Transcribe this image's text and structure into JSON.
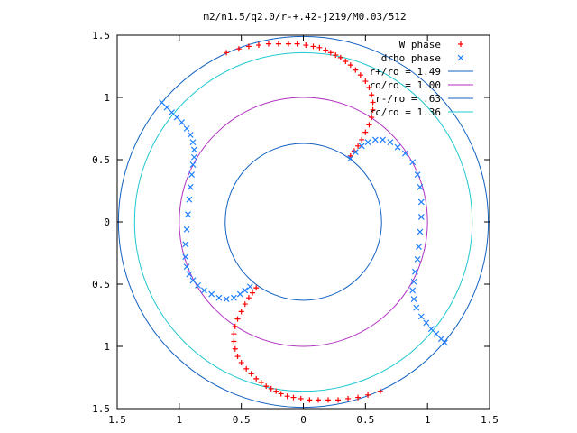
{
  "chart_data": {
    "type": "scatter",
    "title": "m2/n1.5/q2.0/r-+.42-j219/M0.03/512",
    "xlabel": "",
    "ylabel": "",
    "xlim": [
      -1.5,
      1.5
    ],
    "ylim": [
      -1.5,
      1.5
    ],
    "x_ticks": [
      -1.5,
      -1,
      -0.5,
      0,
      0.5,
      1,
      1.5
    ],
    "y_ticks": [
      -1.5,
      -1,
      -0.5,
      0,
      0.5,
      1,
      1.5
    ],
    "x_tick_labels": [
      "1.5",
      "1",
      "0.5",
      "0",
      "0.5",
      "1",
      "1.5"
    ],
    "y_tick_labels": [
      "1.5",
      "1",
      "0.5",
      "0",
      "0.5",
      "1",
      "1.5"
    ],
    "grid": false,
    "legend_position": "top-right",
    "legend": [
      {
        "label": "W phase",
        "marker": "plus",
        "color": "#ff0000"
      },
      {
        "label": "drho phase",
        "marker": "cross",
        "color": "#2080ff"
      },
      {
        "label": "r+/ro = 1.49",
        "marker": "line",
        "color": "#1060c0"
      },
      {
        "label": "ro/ro = 1.00",
        "marker": "line",
        "color": "#b030c0"
      },
      {
        "label": "r-/ro = .63",
        "marker": "line",
        "color": "#1060c0"
      },
      {
        "label": "rc/ro = 1.36",
        "marker": "line",
        "color": "#20c8d0"
      }
    ],
    "circles": [
      {
        "radius": 1.49,
        "color": "#1060c0"
      },
      {
        "radius": 1.0,
        "color": "#b030c0"
      },
      {
        "radius": 0.63,
        "color": "#1060c0"
      },
      {
        "radius": 1.36,
        "color": "#20c8d0"
      }
    ],
    "series": [
      {
        "name": "W phase",
        "color": "#ff0000",
        "marker": "plus",
        "points": [
          [
            -0.62,
            1.36
          ],
          [
            -0.52,
            1.39
          ],
          [
            -0.44,
            1.41
          ],
          [
            -0.36,
            1.42
          ],
          [
            -0.28,
            1.43
          ],
          [
            -0.2,
            1.43
          ],
          [
            -0.12,
            1.43
          ],
          [
            -0.05,
            1.43
          ],
          [
            0.02,
            1.42
          ],
          [
            0.08,
            1.41
          ],
          [
            0.13,
            1.4
          ],
          [
            0.18,
            1.38
          ],
          [
            0.22,
            1.36
          ],
          [
            0.26,
            1.34
          ],
          [
            0.3,
            1.32
          ],
          [
            0.34,
            1.29
          ],
          [
            0.38,
            1.26
          ],
          [
            0.42,
            1.22
          ],
          [
            0.46,
            1.18
          ],
          [
            0.5,
            1.13
          ],
          [
            0.53,
            1.08
          ],
          [
            0.55,
            1.02
          ],
          [
            0.56,
            0.96
          ],
          [
            0.56,
            0.9
          ],
          [
            0.55,
            0.84
          ],
          [
            0.53,
            0.78
          ],
          [
            0.5,
            0.72
          ],
          [
            0.47,
            0.66
          ],
          [
            0.44,
            0.61
          ],
          [
            0.41,
            0.57
          ],
          [
            0.38,
            0.53
          ],
          [
            0.62,
            -1.36
          ],
          [
            0.52,
            -1.39
          ],
          [
            0.44,
            -1.41
          ],
          [
            0.36,
            -1.42
          ],
          [
            0.28,
            -1.43
          ],
          [
            0.2,
            -1.43
          ],
          [
            0.12,
            -1.43
          ],
          [
            0.05,
            -1.43
          ],
          [
            -0.02,
            -1.42
          ],
          [
            -0.08,
            -1.41
          ],
          [
            -0.13,
            -1.4
          ],
          [
            -0.18,
            -1.38
          ],
          [
            -0.22,
            -1.36
          ],
          [
            -0.26,
            -1.34
          ],
          [
            -0.3,
            -1.32
          ],
          [
            -0.34,
            -1.29
          ],
          [
            -0.38,
            -1.26
          ],
          [
            -0.42,
            -1.22
          ],
          [
            -0.46,
            -1.18
          ],
          [
            -0.5,
            -1.13
          ],
          [
            -0.53,
            -1.08
          ],
          [
            -0.55,
            -1.02
          ],
          [
            -0.56,
            -0.96
          ],
          [
            -0.56,
            -0.9
          ],
          [
            -0.55,
            -0.84
          ],
          [
            -0.53,
            -0.78
          ],
          [
            -0.5,
            -0.72
          ],
          [
            -0.47,
            -0.66
          ],
          [
            -0.44,
            -0.61
          ],
          [
            -0.41,
            -0.57
          ],
          [
            -0.38,
            -0.53
          ]
        ]
      },
      {
        "name": "drho phase",
        "color": "#2080ff",
        "marker": "cross",
        "points": [
          [
            -1.14,
            0.96
          ],
          [
            -1.1,
            0.92
          ],
          [
            -1.06,
            0.88
          ],
          [
            -1.02,
            0.84
          ],
          [
            -0.98,
            0.8
          ],
          [
            -0.94,
            0.75
          ],
          [
            -0.91,
            0.7
          ],
          [
            -0.89,
            0.64
          ],
          [
            -0.88,
            0.58
          ],
          [
            -0.88,
            0.52
          ],
          [
            -0.89,
            0.46
          ],
          [
            -0.9,
            0.38
          ],
          [
            -0.91,
            0.28
          ],
          [
            -0.92,
            0.18
          ],
          [
            -0.93,
            0.06
          ],
          [
            -0.94,
            -0.06
          ],
          [
            -0.95,
            -0.18
          ],
          [
            -0.95,
            -0.28
          ],
          [
            -0.94,
            -0.36
          ],
          [
            -0.92,
            -0.42
          ],
          [
            -0.89,
            -0.47
          ],
          [
            -0.85,
            -0.51
          ],
          [
            -0.8,
            -0.55
          ],
          [
            -0.74,
            -0.58
          ],
          [
            -0.68,
            -0.61
          ],
          [
            -0.62,
            -0.62
          ],
          [
            -0.56,
            -0.61
          ],
          [
            -0.51,
            -0.58
          ],
          [
            -0.47,
            -0.55
          ],
          [
            -0.43,
            -0.52
          ],
          [
            0.38,
            0.51
          ],
          [
            0.42,
            0.56
          ],
          [
            0.47,
            0.61
          ],
          [
            0.52,
            0.64
          ],
          [
            0.58,
            0.66
          ],
          [
            0.64,
            0.66
          ],
          [
            0.7,
            0.64
          ],
          [
            0.76,
            0.6
          ],
          [
            0.82,
            0.55
          ],
          [
            0.88,
            0.48
          ],
          [
            0.92,
            0.38
          ],
          [
            0.94,
            0.28
          ],
          [
            0.95,
            0.16
          ],
          [
            0.95,
            0.04
          ],
          [
            0.94,
            -0.08
          ],
          [
            0.93,
            -0.2
          ],
          [
            0.92,
            -0.3
          ],
          [
            0.9,
            -0.4
          ],
          [
            0.89,
            -0.48
          ],
          [
            0.88,
            -0.55
          ],
          [
            0.89,
            -0.62
          ],
          [
            0.91,
            -0.69
          ],
          [
            0.95,
            -0.76
          ],
          [
            0.99,
            -0.81
          ],
          [
            1.03,
            -0.86
          ],
          [
            1.07,
            -0.9
          ],
          [
            1.11,
            -0.94
          ],
          [
            1.14,
            -0.97
          ]
        ]
      }
    ]
  }
}
